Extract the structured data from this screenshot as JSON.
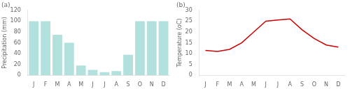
{
  "chart_data": [
    {
      "type": "bar",
      "title": "(a)",
      "categories": [
        "J",
        "F",
        "M",
        "A",
        "M",
        "J",
        "J",
        "A",
        "S",
        "O",
        "N",
        "D"
      ],
      "values": [
        100,
        100,
        75,
        60,
        18,
        10,
        6,
        8,
        38,
        100,
        100,
        100
      ],
      "color": "#b2e0dc",
      "y_label": "Precipitation (mm)",
      "ylim": [
        0,
        120
      ],
      "yticks": [
        0,
        20,
        40,
        60,
        80,
        100,
        120
      ],
      "grid": false
    },
    {
      "type": "line",
      "title": "(b)",
      "categories": [
        "J",
        "F",
        "M",
        "A",
        "M",
        "J",
        "J",
        "A",
        "S",
        "O",
        "N",
        "D"
      ],
      "values": [
        11.5,
        11.0,
        12.0,
        15.0,
        20.0,
        25.0,
        25.5,
        26.0,
        21.0,
        17.0,
        14.0,
        13.0
      ],
      "color": "#cc0000",
      "y_label": "Temperature (oC)",
      "ylim": [
        0,
        30
      ],
      "yticks": [
        0,
        5,
        10,
        15,
        20,
        25,
        30
      ],
      "grid": false
    }
  ]
}
